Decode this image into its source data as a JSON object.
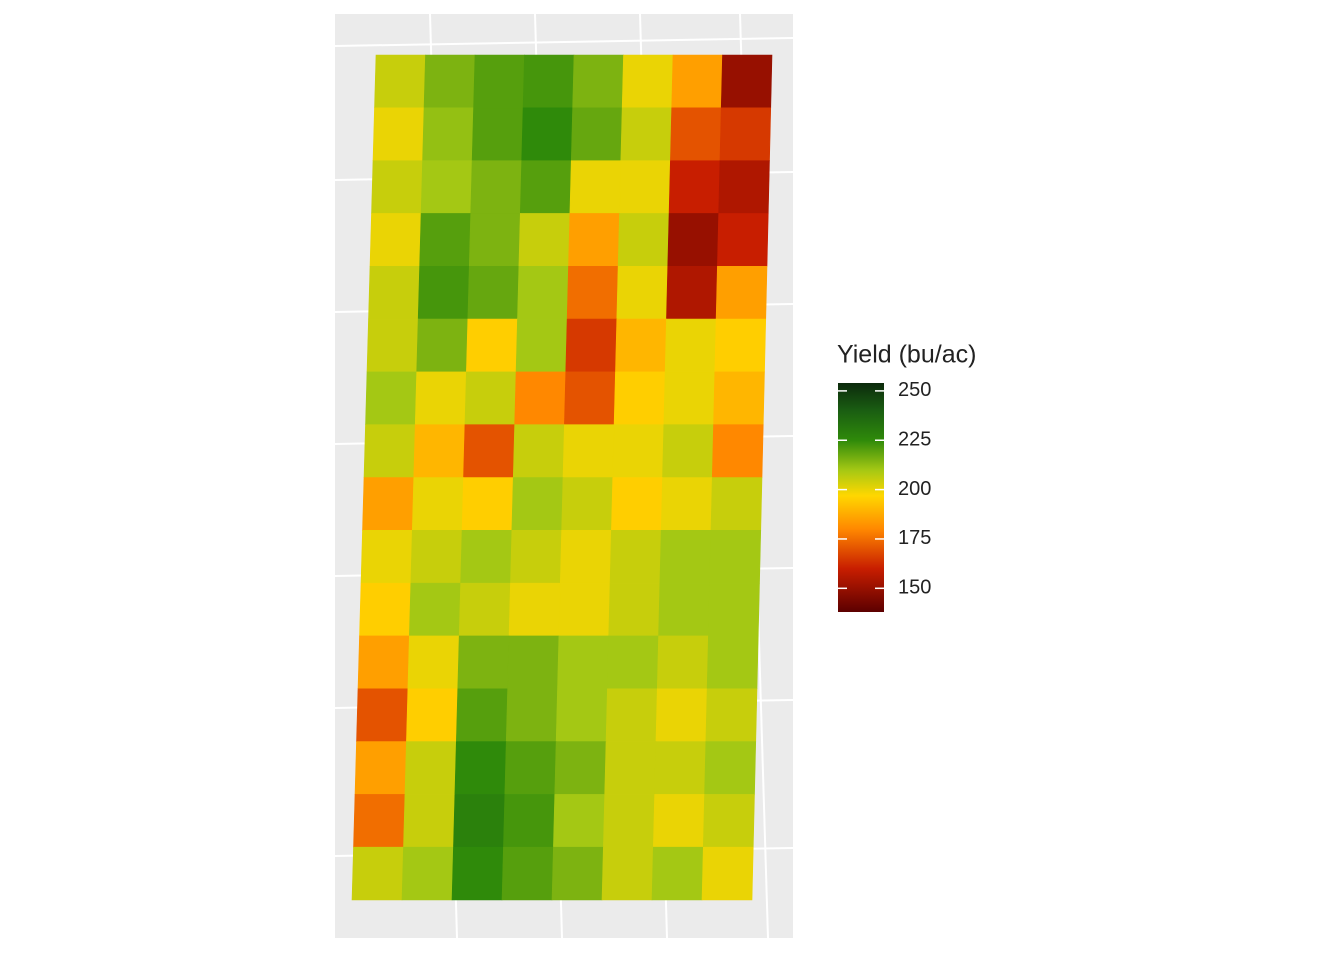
{
  "chart_data": {
    "type": "yield-map",
    "legend_title": "Yield (bu/ac)",
    "legend_lim": [
      138,
      254
    ],
    "legend_ticks": [
      150,
      175,
      200,
      225,
      250
    ],
    "colors": [
      {
        "value": 138,
        "color": "#5c0000"
      },
      {
        "value": 160,
        "color": "#c81e00"
      },
      {
        "value": 180,
        "color": "#ff8800"
      },
      {
        "value": 197,
        "color": "#ffd700"
      },
      {
        "value": 210,
        "color": "#a4c814"
      },
      {
        "value": 225,
        "color": "#2f8a0a"
      },
      {
        "value": 240,
        "color": "#1a5e12"
      },
      {
        "value": 254,
        "color": "#0c2a0c"
      }
    ],
    "values": [
      [
        205,
        215,
        220,
        222,
        215,
        200,
        185,
        150
      ],
      [
        200,
        212,
        220,
        225,
        218,
        205,
        170,
        165
      ],
      [
        205,
        210,
        215,
        220,
        200,
        200,
        160,
        155
      ],
      [
        200,
        220,
        215,
        205,
        185,
        205,
        150,
        160
      ],
      [
        205,
        222,
        218,
        210,
        175,
        200,
        155,
        185
      ],
      [
        205,
        215,
        195,
        210,
        165,
        190,
        200,
        195
      ],
      [
        210,
        200,
        205,
        180,
        170,
        195,
        200,
        190
      ],
      [
        205,
        190,
        170,
        205,
        200,
        200,
        205,
        180
      ],
      [
        185,
        200,
        195,
        210,
        205,
        195,
        200,
        205
      ],
      [
        200,
        205,
        210,
        205,
        200,
        205,
        210,
        210
      ],
      [
        195,
        210,
        205,
        200,
        200,
        205,
        210,
        210
      ],
      [
        185,
        200,
        215,
        215,
        210,
        210,
        205,
        210
      ],
      [
        170,
        195,
        220,
        215,
        210,
        205,
        200,
        205
      ],
      [
        185,
        205,
        225,
        220,
        215,
        205,
        205,
        210
      ],
      [
        175,
        205,
        228,
        222,
        210,
        205,
        200,
        205
      ],
      [
        205,
        210,
        225,
        220,
        215,
        205,
        210,
        200
      ]
    ]
  }
}
